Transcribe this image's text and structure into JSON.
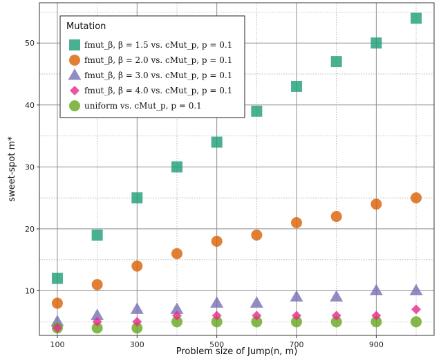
{
  "chart_data": {
    "type": "scatter",
    "xlabel": "Problem size of Jump(n, m)",
    "ylabel": "sweet-spot m*",
    "xlim": [
      55,
      1045
    ],
    "ylim": [
      2.8,
      56.5
    ],
    "xticks": [
      100,
      300,
      500,
      700,
      900
    ],
    "yticks": [
      10,
      20,
      30,
      40,
      50
    ],
    "grid": true,
    "legend": {
      "title": "Mutation",
      "placement": "top-left"
    },
    "series": [
      {
        "name": "fmut_β, β = 1.5 vs. cMut_p, p = 0.1",
        "marker": "square",
        "color": "#1b9e77",
        "x": [
          100,
          200,
          300,
          400,
          500,
          600,
          700,
          800,
          900,
          1000
        ],
        "y": [
          12,
          19,
          25,
          30,
          34,
          39,
          43,
          47,
          50,
          54
        ]
      },
      {
        "name": "fmut_β, β = 2.0 vs. cMut_p, p = 0.1",
        "marker": "circle",
        "color": "#d95f02",
        "x": [
          100,
          200,
          300,
          400,
          500,
          600,
          700,
          800,
          900,
          1000
        ],
        "y": [
          8,
          11,
          14,
          16,
          18,
          19,
          21,
          22,
          24,
          25
        ]
      },
      {
        "name": "fmut_β, β = 3.0 vs. cMut_p, p = 0.1",
        "marker": "triangle",
        "color": "#7570b3",
        "x": [
          100,
          200,
          300,
          400,
          500,
          600,
          700,
          800,
          900,
          1000
        ],
        "y": [
          5,
          6,
          7,
          7,
          8,
          8,
          9,
          9,
          10,
          10
        ]
      },
      {
        "name": "fmut_β, β = 4.0 vs. cMut_p, p = 0.1",
        "marker": "diamond",
        "color": "#e7298a",
        "x": [
          100,
          200,
          300,
          400,
          500,
          600,
          700,
          800,
          900,
          1000
        ],
        "y": [
          4,
          5,
          5,
          6,
          6,
          6,
          6,
          6,
          6,
          7
        ]
      },
      {
        "name": "uniform vs. cMut_p, p = 0.1",
        "marker": "circle",
        "color": "#66a61e",
        "x": [
          100,
          200,
          300,
          400,
          500,
          600,
          700,
          800,
          900,
          1000
        ],
        "y": [
          4,
          4,
          4,
          5,
          5,
          5,
          5,
          5,
          5,
          5
        ]
      }
    ]
  }
}
